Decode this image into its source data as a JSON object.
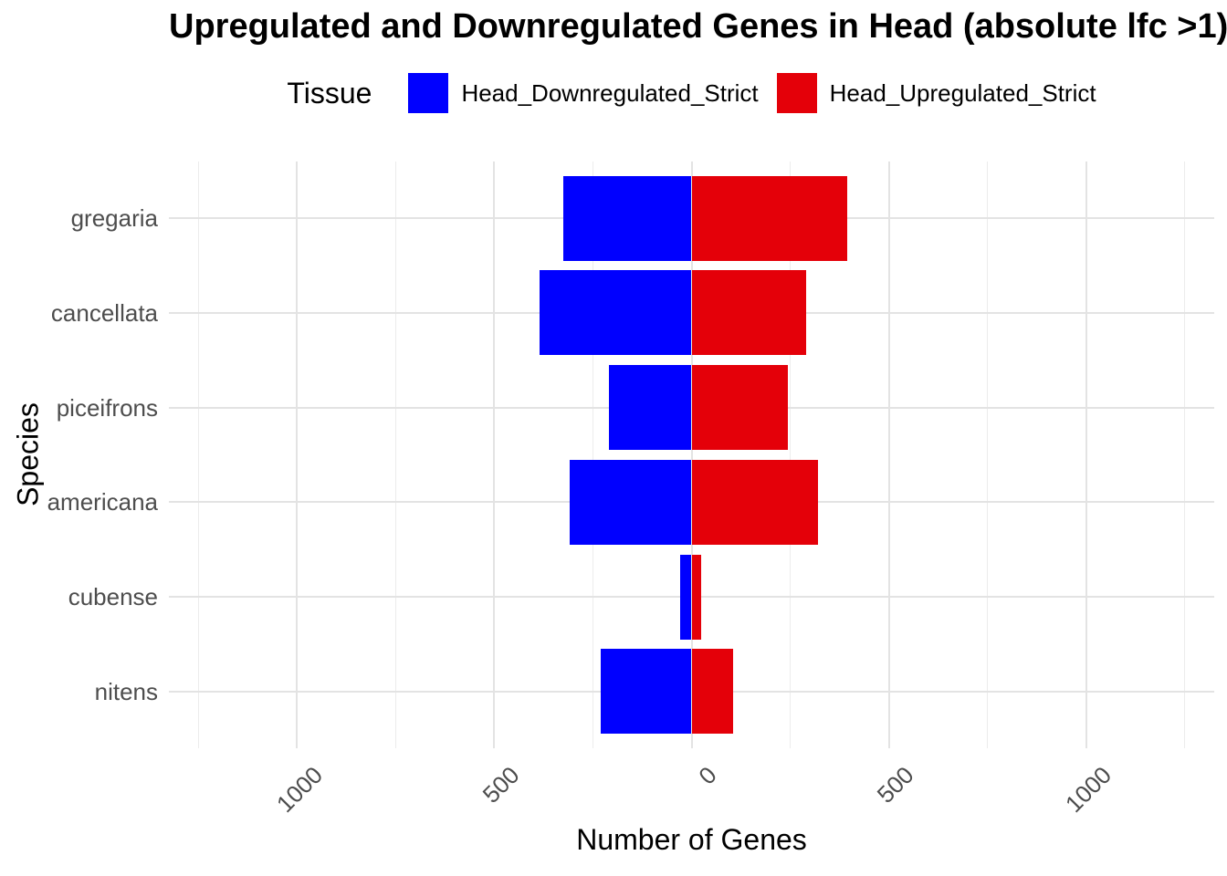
{
  "legend": {
    "title": "Tissue"
  },
  "chart_data": {
    "type": "bar",
    "orientation": "horizontal-diverging",
    "title": "Upregulated and Downregulated Genes in Head (absolute lfc >1)",
    "xlabel": "Number of Genes",
    "ylabel": "Species",
    "categories": [
      "gregaria",
      "cancellata",
      "piceifrons",
      "americana",
      "cubense",
      "nitens"
    ],
    "series": [
      {
        "name": "Head_Downregulated_Strict",
        "color": "#0000ff",
        "values": [
          -325,
          -385,
          -210,
          -310,
          -30,
          -230
        ]
      },
      {
        "name": "Head_Upregulated_Strict",
        "color": "#e40009",
        "values": [
          395,
          290,
          245,
          320,
          25,
          105
        ]
      }
    ],
    "x_domain": [
      -1325,
      1325
    ],
    "x_major_ticks": [
      -1000,
      -500,
      0,
      500,
      1000
    ],
    "x_tick_labels": [
      "1000",
      "500",
      "0",
      "500",
      "1000"
    ],
    "x_minor_ticks": [
      -1250,
      -750,
      -250,
      250,
      750,
      1250
    ],
    "grid": true,
    "legend_position": "top",
    "colors": {
      "grid_major": "#e3e3e3",
      "grid_minor": "#ececec",
      "axis_text": "#4d4d4d"
    }
  }
}
